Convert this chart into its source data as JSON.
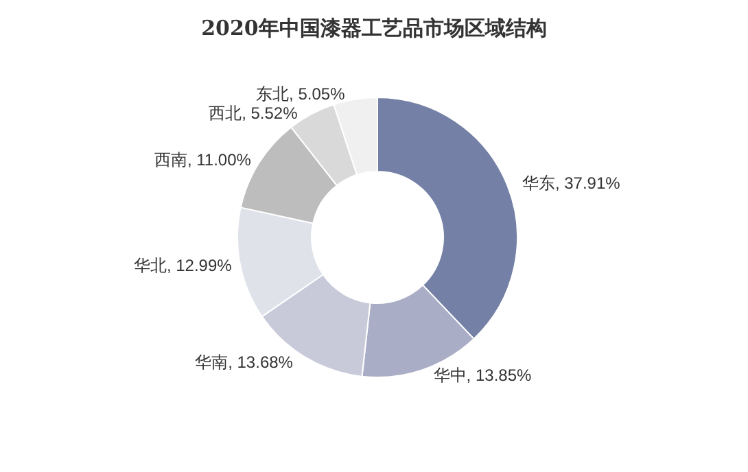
{
  "chart_data": {
    "type": "donut",
    "title": "2020年中国漆器工艺品市场区域结构",
    "categories": [
      "华东",
      "华中",
      "华南",
      "华北",
      "西南",
      "西北",
      "东北"
    ],
    "values": [
      37.91,
      13.85,
      13.68,
      12.99,
      11.0,
      5.52,
      5.05
    ],
    "colors": [
      "#7480a5",
      "#a9adc6",
      "#c8cad9",
      "#e0e2ea",
      "#bdbdbd",
      "#d9d9d9",
      "#f0f0f0"
    ],
    "value_labels": [
      "37.91%",
      "13.85%",
      "13.68%",
      "12.99%",
      "11.00%",
      "5.52%",
      "5.05%"
    ],
    "legend": false
  }
}
